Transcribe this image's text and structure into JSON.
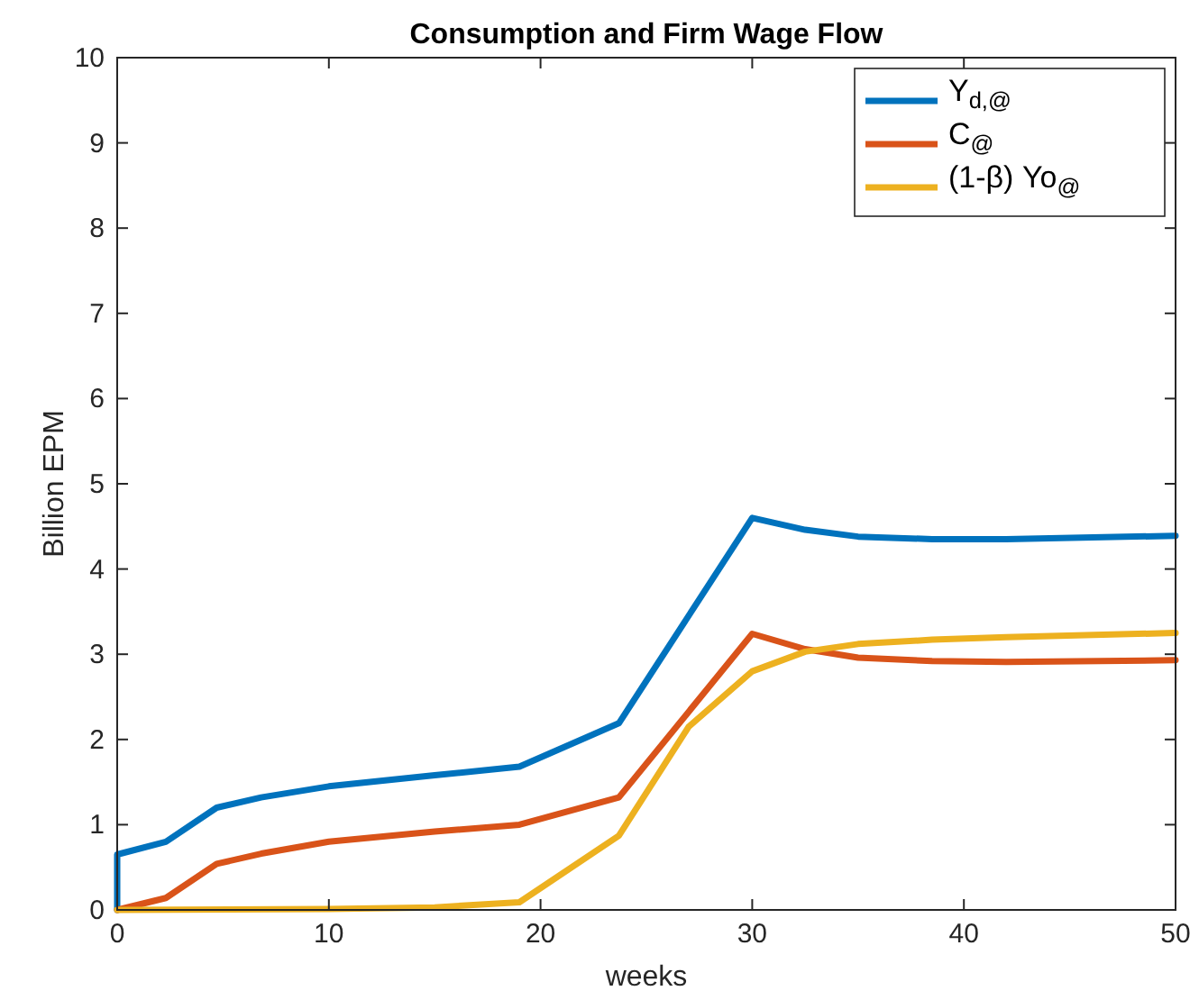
{
  "chart_data": {
    "type": "line",
    "title": "Consumption and Firm Wage Flow",
    "xlabel": "weeks",
    "ylabel": "Billion EPM",
    "xlim": [
      0,
      50
    ],
    "ylim": [
      0,
      10
    ],
    "xticks": [
      0,
      10,
      20,
      30,
      40,
      50
    ],
    "yticks": [
      0,
      1,
      2,
      3,
      4,
      5,
      6,
      7,
      8,
      9,
      10
    ],
    "grid": false,
    "legend": "top right",
    "line_style": "solid",
    "marker": "none",
    "series": [
      {
        "name": "Y$_{d,@}$",
        "color": "#0072bd",
        "x": [
          0,
          0,
          2.3,
          4.7,
          6.8,
          10,
          15,
          19,
          23.7,
          30,
          32.5,
          35,
          38.5,
          42,
          50
        ],
        "values": [
          0,
          0.65,
          0.8,
          1.2,
          1.32,
          1.45,
          1.58,
          1.68,
          2.19,
          4.6,
          4.46,
          4.38,
          4.35,
          4.35,
          4.39
        ]
      },
      {
        "name": "C$_{@}$",
        "color": "#d95319",
        "x": [
          0,
          2.3,
          4.7,
          6.8,
          10,
          15,
          19,
          23.7,
          30,
          32.5,
          35,
          38.5,
          42,
          50
        ],
        "values": [
          0,
          0.14,
          0.54,
          0.66,
          0.8,
          0.92,
          1.0,
          1.32,
          3.24,
          3.06,
          2.96,
          2.92,
          2.91,
          2.93
        ]
      },
      {
        "name": "(1-β) Yo$_{@}$",
        "color": "#edb120",
        "x": [
          0,
          10,
          15,
          19,
          23.7,
          27,
          30,
          32.5,
          35,
          38.5,
          42,
          50
        ],
        "values": [
          0,
          0.01,
          0.03,
          0.09,
          0.87,
          2.15,
          2.8,
          3.03,
          3.12,
          3.17,
          3.2,
          3.25
        ]
      }
    ]
  }
}
